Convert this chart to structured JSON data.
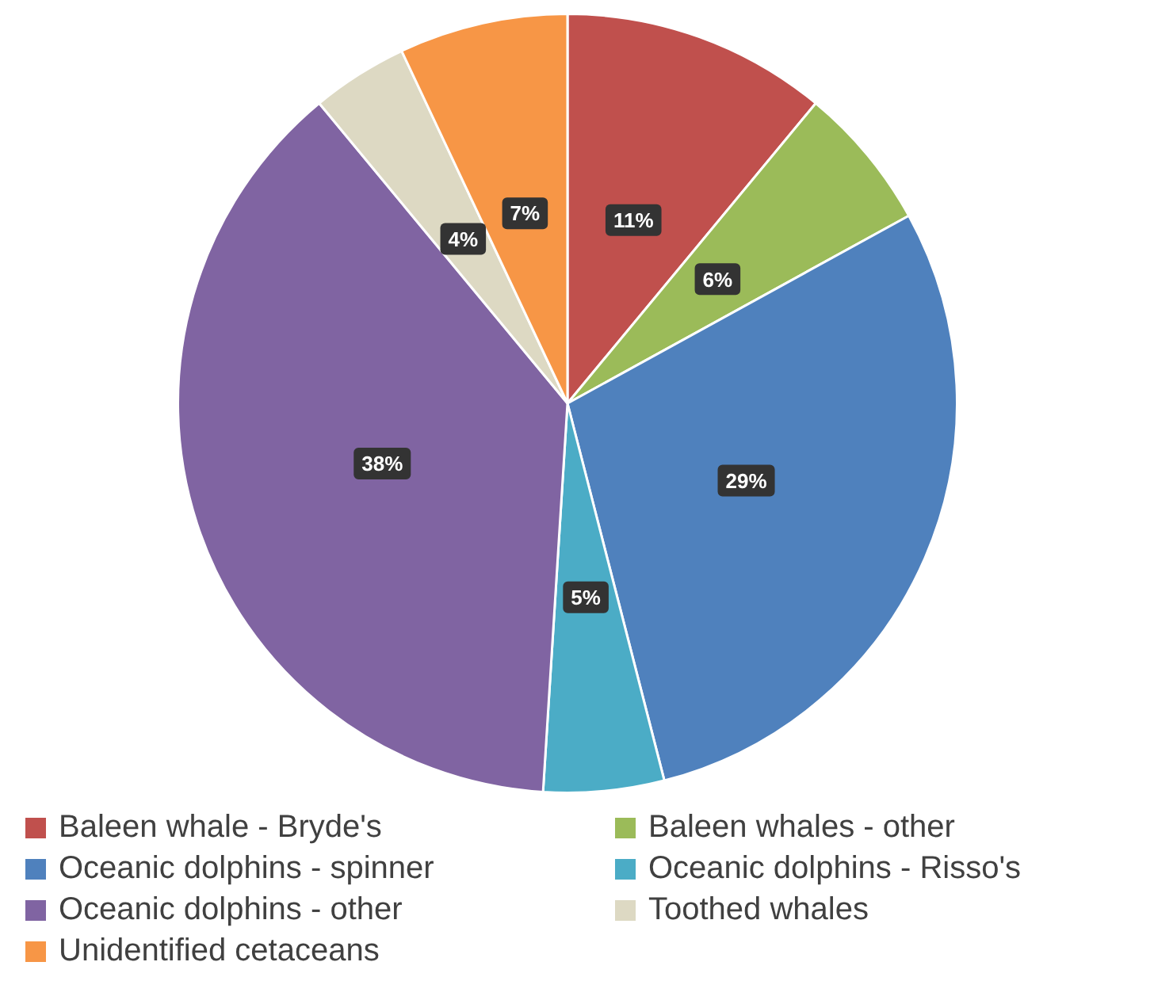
{
  "chart_data": {
    "type": "pie",
    "categories": [
      "Baleen whale - Bryde's",
      "Baleen whales - other",
      "Oceanic dolphins - spinner",
      "Oceanic dolphins - Risso's",
      "Oceanic dolphins - other",
      "Toothed whales",
      "Unidentified cetaceans"
    ],
    "values": [
      11,
      6,
      29,
      5,
      38,
      4,
      7
    ],
    "value_labels": [
      "11%",
      "6%",
      "29%",
      "5%",
      "38%",
      "4%",
      "7%"
    ],
    "colors": [
      "#c0504d",
      "#9bbb59",
      "#4f81bd",
      "#4bacc6",
      "#8064a2",
      "#ddd9c3",
      "#f79646"
    ],
    "legend": "bottom"
  }
}
